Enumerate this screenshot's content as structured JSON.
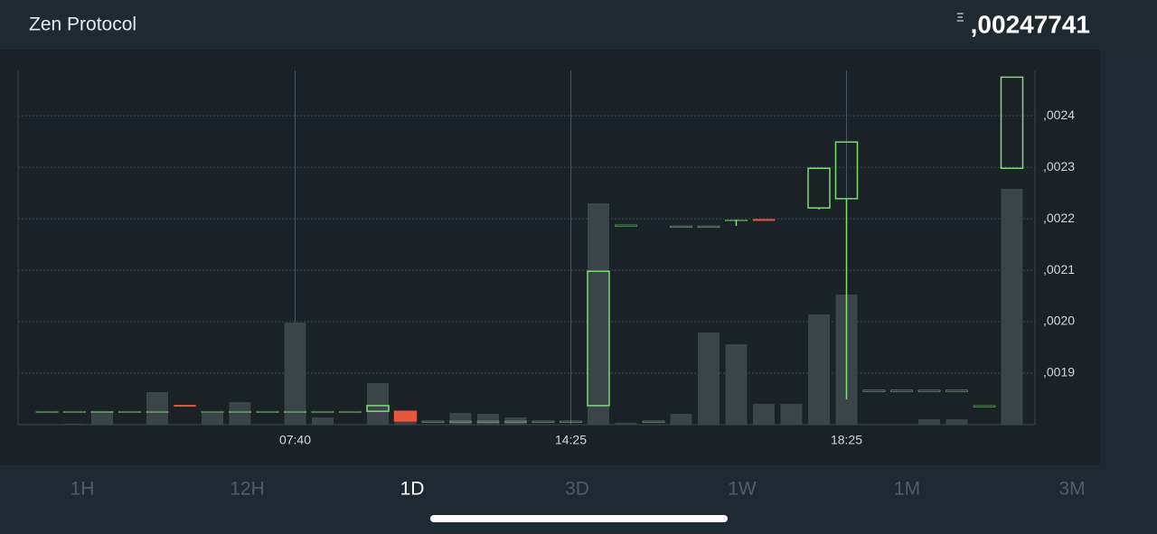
{
  "header": {
    "title": "Zen Protocol",
    "price": ",00247741"
  },
  "chart_data": {
    "type": "candlestick",
    "categories": [
      null,
      null,
      null,
      null,
      null,
      null,
      null,
      null,
      null,
      "07:40",
      null,
      null,
      null,
      null,
      null,
      null,
      null,
      null,
      null,
      "14:25",
      null,
      null,
      null,
      null,
      null,
      null,
      null,
      null,
      null,
      "18:25",
      null,
      null,
      null,
      null,
      null,
      null
    ],
    "open": [
      0.001826,
      0.001826,
      0.001826,
      0.001826,
      0.001826,
      0.001838,
      0.001826,
      0.001826,
      0.001826,
      0.001826,
      0.001826,
      0.001826,
      0.001826,
      0.001826,
      0.001807,
      0.001807,
      0.001807,
      0.001807,
      0.001807,
      0.001807,
      0.001837,
      0.002188,
      0.001807,
      0.002186,
      0.002186,
      0.002198,
      0.002199,
      null,
      0.002221,
      0.002239,
      0.001867,
      0.001867,
      0.001867,
      0.001867,
      0.001837,
      0.002298
    ],
    "high": [
      0.001826,
      0.001826,
      0.001826,
      0.001826,
      0.001826,
      0.001838,
      0.001826,
      0.001826,
      0.001826,
      0.001826,
      0.001826,
      0.001826,
      0.001837,
      0.001826,
      0.001807,
      0.001807,
      0.001807,
      0.001807,
      0.001807,
      0.001807,
      0.002098,
      0.002188,
      0.001807,
      0.002186,
      0.002186,
      0.002198,
      0.002199,
      null,
      0.002298,
      0.002349,
      0.001867,
      0.001867,
      0.001867,
      0.001867,
      0.001837,
      0.002475
    ],
    "low": [
      0.001826,
      0.001826,
      0.001826,
      0.001826,
      0.001826,
      0.001837,
      0.001826,
      0.001826,
      0.001826,
      0.001826,
      0.001826,
      0.001826,
      0.001826,
      0.001807,
      0.001807,
      0.001807,
      0.001807,
      0.001807,
      0.001807,
      0.001807,
      0.001837,
      0.002188,
      0.001807,
      0.002186,
      0.002186,
      0.002186,
      0.002198,
      null,
      0.002218,
      0.001849,
      0.001867,
      0.001867,
      0.001867,
      0.001867,
      0.001837,
      0.002298
    ],
    "close": [
      0.001826,
      0.001826,
      0.001826,
      0.001826,
      0.001826,
      0.001837,
      0.001826,
      0.001826,
      0.001826,
      0.001826,
      0.001826,
      0.001826,
      0.001837,
      0.001807,
      0.001807,
      0.001807,
      0.001807,
      0.001807,
      0.001807,
      0.001807,
      0.002098,
      0.002188,
      0.001807,
      0.002186,
      0.002186,
      0.002198,
      0.002198,
      null,
      0.002298,
      0.002349,
      0.001867,
      0.001867,
      0.001867,
      0.001867,
      0.001837,
      0.002475
    ],
    "volume": [
      0,
      1,
      15,
      0,
      36,
      0,
      13,
      25,
      0,
      113,
      8,
      0,
      46,
      3,
      0,
      13,
      12,
      8,
      0,
      0,
      245,
      2,
      0,
      12,
      102,
      89,
      23,
      23,
      122,
      144,
      0,
      0,
      6,
      6,
      0,
      261
    ],
    "up_color": "#7ddc76",
    "down_color": "#e5583e",
    "volume_color": "#3a4449",
    "ylim": [
      0.0018,
      0.002488
    ],
    "yticks": [
      {
        "value": 0.0019,
        "label": ",0019"
      },
      {
        "value": 0.002,
        "label": ",0020"
      },
      {
        "value": 0.0021,
        "label": ",0021"
      },
      {
        "value": 0.0022,
        "label": ",0022"
      },
      {
        "value": 0.0023,
        "label": ",0023"
      },
      {
        "value": 0.0024,
        "label": ",0024"
      }
    ],
    "grid": true
  },
  "tabs": [
    "1H",
    "12H",
    "1D",
    "3D",
    "1W",
    "1M",
    "3M"
  ],
  "active_tab": 2
}
